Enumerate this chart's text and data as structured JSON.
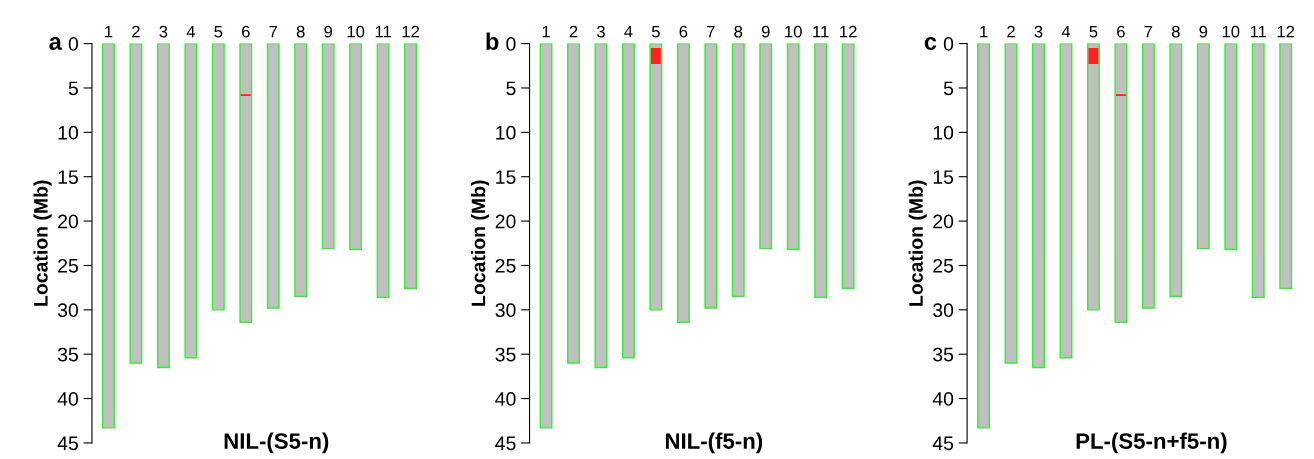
{
  "chart_data": [
    {
      "type": "bar",
      "title": "NIL-(S5-n)",
      "ylabel": "Location (Mb)",
      "annotations": [
        "a"
      ],
      "categories": [
        "1",
        "2",
        "3",
        "4",
        "5",
        "6",
        "7",
        "8",
        "9",
        "10",
        "11",
        "12"
      ],
      "ylim": [
        45,
        0
      ],
      "yticks": [
        0,
        5,
        10,
        15,
        20,
        25,
        30,
        35,
        40,
        45
      ],
      "grid": false,
      "legend": false,
      "series": [
        {
          "color": "#c0c0c0",
          "values": [
            43.3,
            36.0,
            36.5,
            35.4,
            30.0,
            31.4,
            29.8,
            28.5,
            23.1,
            23.2,
            28.6,
            27.6
          ]
        },
        {
          "color": "#ff2020",
          "base": [
            null,
            null,
            null,
            null,
            null,
            5.7,
            null,
            null,
            null,
            null,
            null,
            null
          ],
          "values": [
            null,
            null,
            null,
            null,
            null,
            0.2,
            null,
            null,
            null,
            null,
            null,
            null
          ]
        }
      ]
    },
    {
      "type": "bar",
      "title": "NIL-(f5-n)",
      "ylabel": "Location (Mb)",
      "annotations": [
        "b"
      ],
      "categories": [
        "1",
        "2",
        "3",
        "4",
        "5",
        "6",
        "7",
        "8",
        "9",
        "10",
        "11",
        "12"
      ],
      "ylim": [
        45,
        0
      ],
      "yticks": [
        0,
        5,
        10,
        15,
        20,
        25,
        30,
        35,
        40,
        45
      ],
      "grid": false,
      "legend": false,
      "series": [
        {
          "color": "#c0c0c0",
          "values": [
            43.3,
            36.0,
            36.5,
            35.4,
            30.0,
            31.4,
            29.8,
            28.5,
            23.1,
            23.2,
            28.6,
            27.6
          ]
        },
        {
          "color": "#ff2020",
          "base": [
            null,
            null,
            null,
            null,
            0.5,
            null,
            null,
            null,
            null,
            null,
            null,
            null
          ],
          "values": [
            null,
            null,
            null,
            null,
            1.8,
            null,
            null,
            null,
            null,
            null,
            null,
            null
          ]
        }
      ]
    },
    {
      "type": "bar",
      "title": "PL-(S5-n+f5-n)",
      "ylabel": "Location (Mb)",
      "annotations": [
        "c"
      ],
      "categories": [
        "1",
        "2",
        "3",
        "4",
        "5",
        "6",
        "7",
        "8",
        "9",
        "10",
        "11",
        "12"
      ],
      "ylim": [
        45,
        0
      ],
      "yticks": [
        0,
        5,
        10,
        15,
        20,
        25,
        30,
        35,
        40,
        45
      ],
      "grid": false,
      "legend": false,
      "series": [
        {
          "color": "#c0c0c0",
          "values": [
            43.3,
            36.0,
            36.5,
            35.4,
            30.0,
            31.4,
            29.8,
            28.5,
            23.1,
            23.2,
            28.6,
            27.6
          ]
        },
        {
          "color": "#ff2020",
          "base": [
            null,
            null,
            null,
            null,
            0.5,
            5.7,
            null,
            null,
            null,
            null,
            null,
            null
          ],
          "values": [
            null,
            null,
            null,
            null,
            1.8,
            0.2,
            null,
            null,
            null,
            null,
            null,
            null
          ]
        }
      ]
    }
  ]
}
